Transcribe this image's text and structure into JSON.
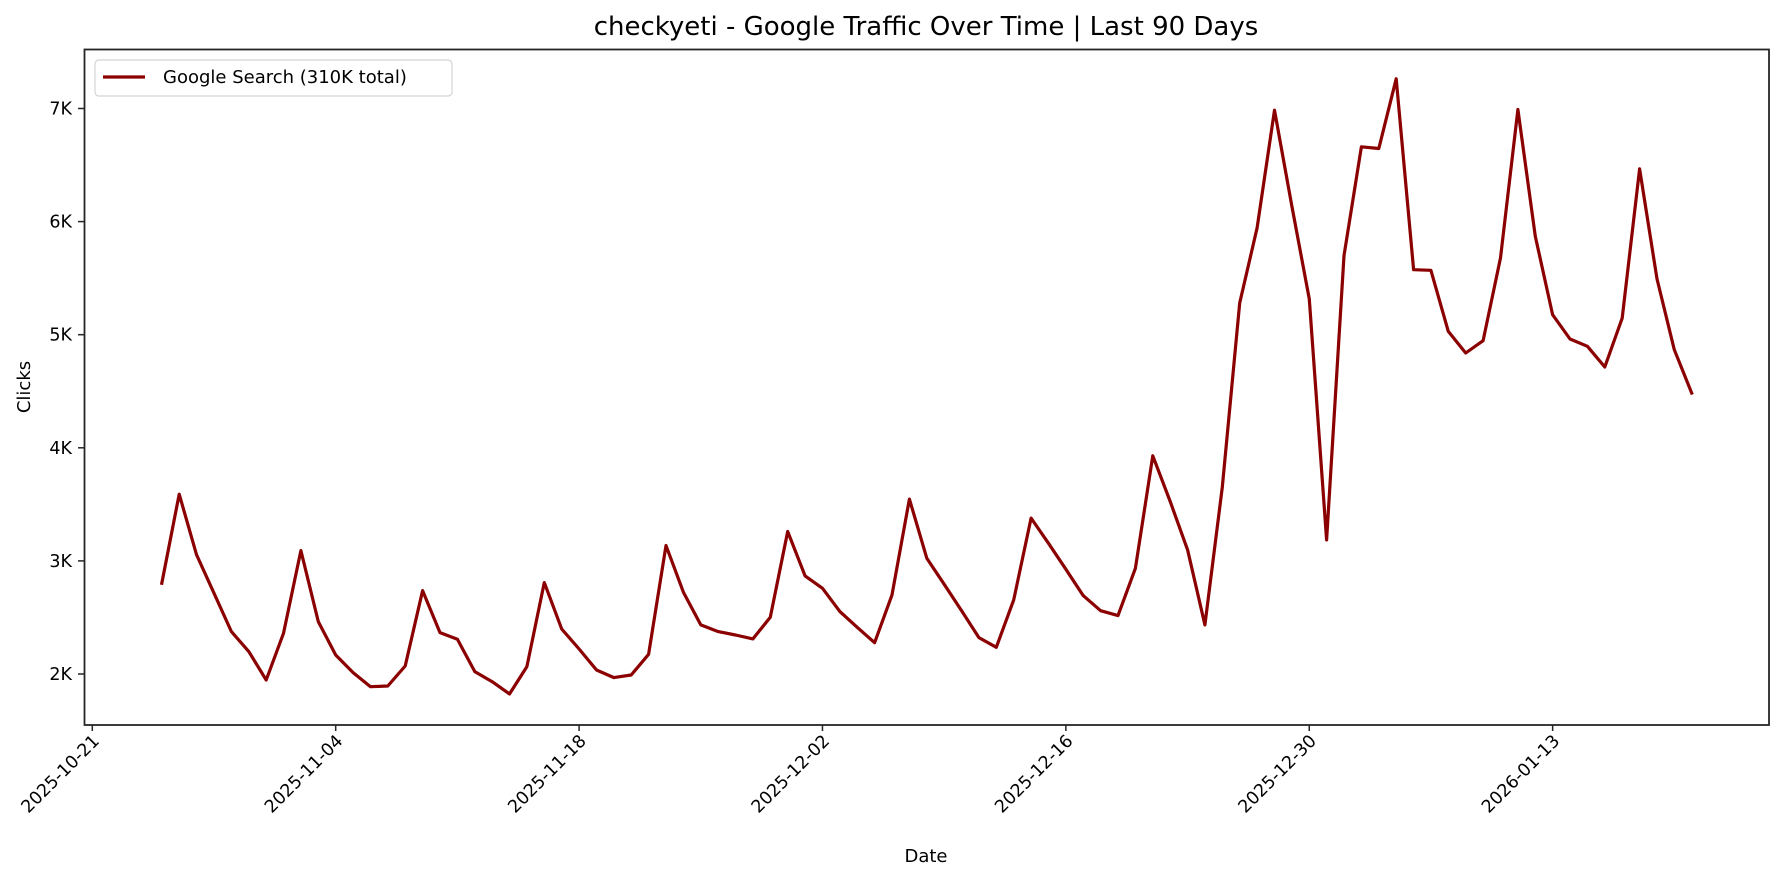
{
  "chart_data": {
    "type": "line",
    "title": "checkyeti - Google Traffic Over Time | Last 90 Days",
    "xlabel": "Date",
    "ylabel": "Clicks",
    "ylim": [
      1549,
      7531
    ],
    "xlim": [
      "2025-10-20",
      "2026-01-26"
    ],
    "grid": false,
    "legend_position": "upper left",
    "y_ticks": [
      {
        "value": 2000,
        "label": "2K"
      },
      {
        "value": 3000,
        "label": "3K"
      },
      {
        "value": 4000,
        "label": "4K"
      },
      {
        "value": 5000,
        "label": "5K"
      },
      {
        "value": 6000,
        "label": "6K"
      },
      {
        "value": 7000,
        "label": "7K"
      }
    ],
    "x_ticks": [
      "2025-10-21",
      "2025-11-04",
      "2025-11-18",
      "2025-12-02",
      "2025-12-16",
      "2025-12-30",
      "2026-01-13"
    ],
    "x_start": "2025-10-25",
    "x_end": "2026-01-21",
    "series": [
      {
        "name": "Google Search (310K total)",
        "color": "#8b0000",
        "start_date": "2025-10-25",
        "values": [
          2803,
          3590,
          3053,
          2714,
          2375,
          2198,
          1947,
          2360,
          3091,
          2463,
          2168,
          2012,
          1888,
          1894,
          2071,
          2737,
          2366,
          2307,
          2021,
          1932,
          1823,
          2065,
          2808,
          2398,
          2221,
          2035,
          1968,
          1991,
          2174,
          3136,
          2723,
          2434,
          2375,
          2345,
          2310,
          2502,
          3260,
          2867,
          2758,
          2552,
          2413,
          2277,
          2699,
          3546,
          3024,
          2793,
          2560,
          2322,
          2236,
          2655,
          3378,
          3156,
          2926,
          2693,
          2560,
          2516,
          2935,
          3929,
          3525,
          3097,
          2434,
          3652,
          5280,
          5944,
          6985,
          6135,
          5315,
          3186,
          5699,
          6661,
          6646,
          7263,
          5575,
          5569,
          5029,
          4838,
          4947,
          5679,
          6991,
          5870,
          5177,
          4962,
          4897,
          4714,
          5147,
          6466,
          5493,
          4867,
          4484
        ]
      }
    ]
  },
  "legend": {
    "items": [
      {
        "label": "Google Search (310K total)",
        "color": "#8b0000"
      }
    ]
  }
}
